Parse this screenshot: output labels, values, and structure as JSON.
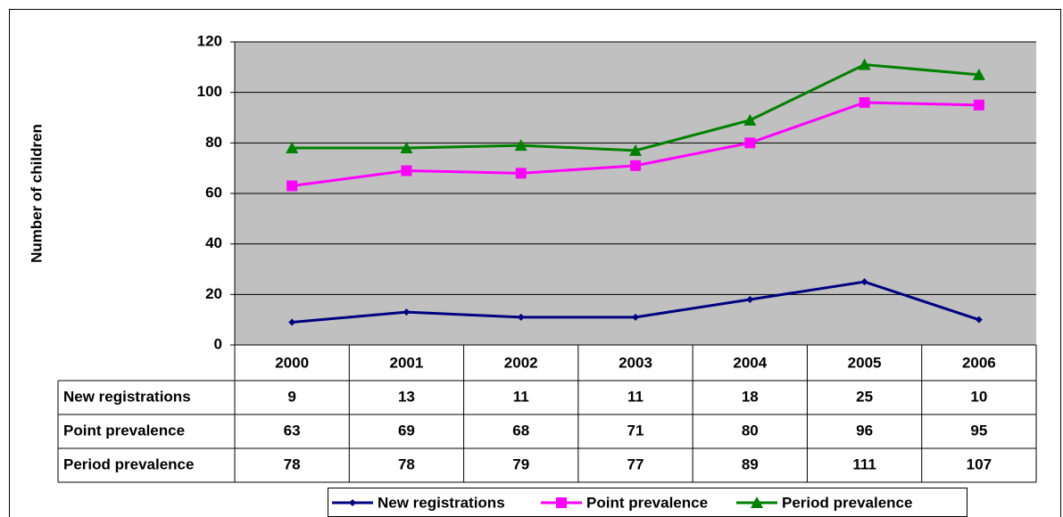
{
  "chart_data": {
    "type": "line",
    "y_label": "Number of children",
    "categories": [
      "2000",
      "2001",
      "2002",
      "2003",
      "2004",
      "2005",
      "2006"
    ],
    "series": [
      {
        "name": "New registrations",
        "color": "#000080",
        "marker": "diamond",
        "values": [
          9,
          13,
          11,
          11,
          18,
          25,
          10
        ]
      },
      {
        "name": "Point prevalence",
        "color": "#ff00ff",
        "marker": "square",
        "values": [
          63,
          69,
          68,
          71,
          80,
          96,
          95
        ]
      },
      {
        "name": "Period prevalence",
        "color": "#008000",
        "marker": "triangle",
        "values": [
          78,
          78,
          79,
          77,
          89,
          111,
          107
        ]
      }
    ],
    "ylim": [
      0,
      120
    ],
    "yticks": [
      0,
      20,
      40,
      60,
      80,
      100,
      120
    ],
    "grid": true
  }
}
